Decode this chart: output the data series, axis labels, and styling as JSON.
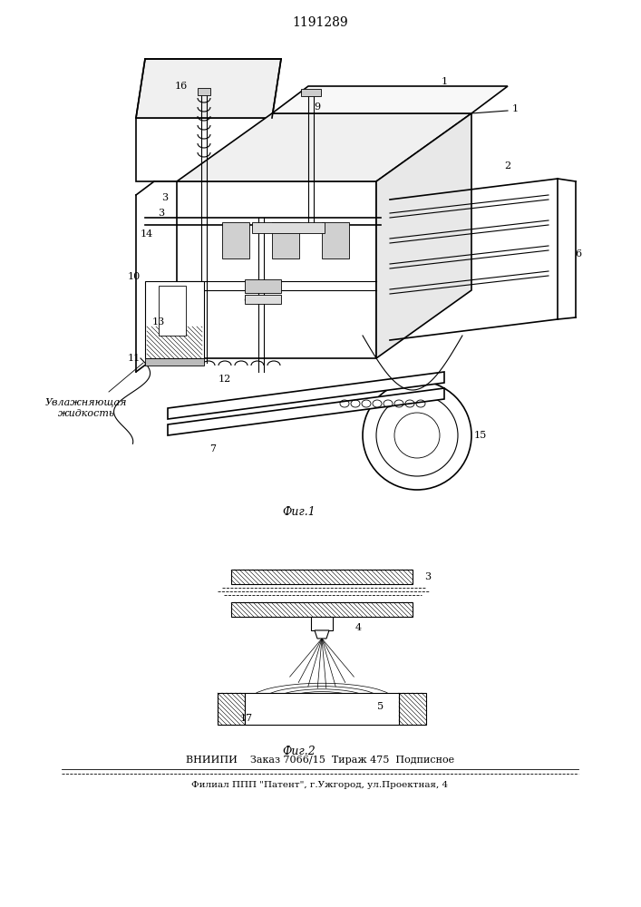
{
  "patent_number": "1191289",
  "fig1_caption": "Фиг.1",
  "fig2_caption": "Фиг.2",
  "bottom_text1": "ВНИИПИ    Заказ 7066/15  Тираж 475  Подписное",
  "bottom_text2": "Филиал ППП \"Патент\", г.Ужгород, ул.Проектная, 4",
  "label_liquid": "Увлажняющая\nжидкость",
  "bg_color": "#ffffff",
  "line_color": "#000000",
  "fig_width": 7.07,
  "fig_height": 10.0
}
